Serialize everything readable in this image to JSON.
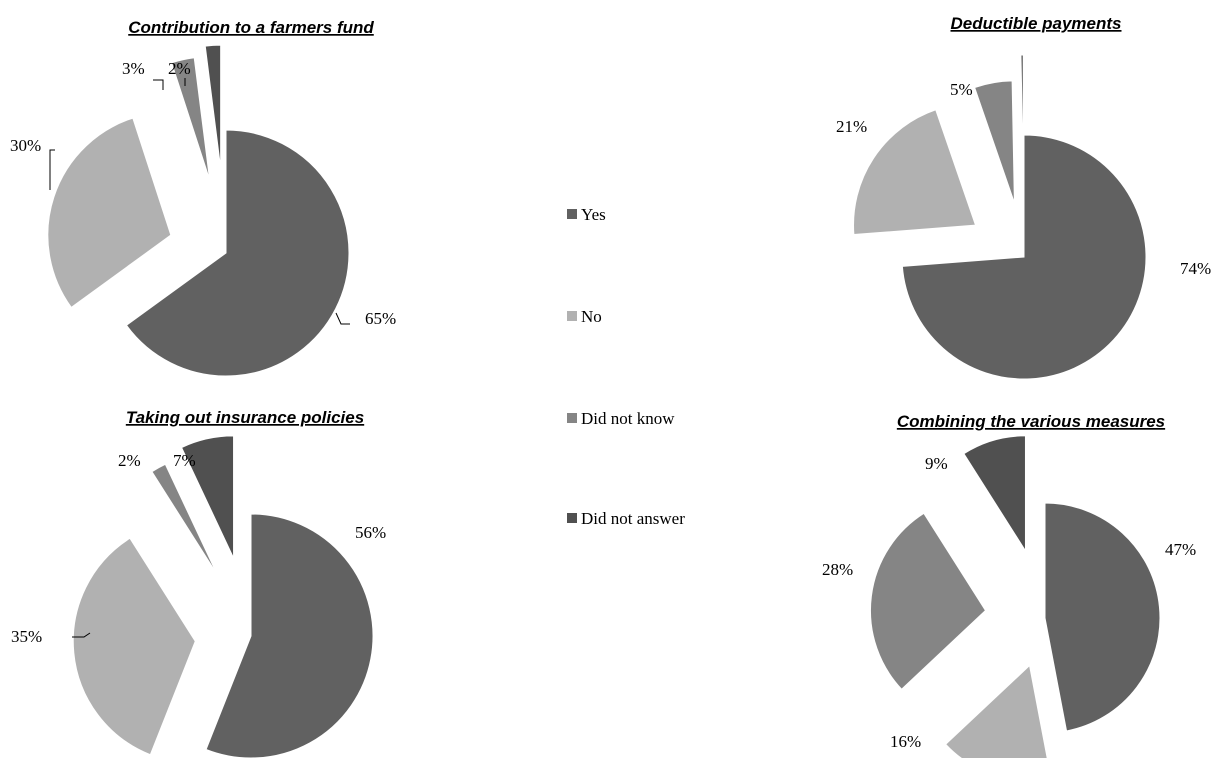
{
  "colors": {
    "Yes": "#616161",
    "No": "#b1b1b1",
    "Did not know": "#858585",
    "Did not answer": "#505050",
    "slice_edge": "#ffffff"
  },
  "legend": [
    "Yes",
    "No",
    "Did not know",
    "Did not answer"
  ],
  "chart_data": [
    {
      "type": "pie",
      "title": "Contribution to a farmers fund",
      "categories": [
        "Yes",
        "No",
        "Did not know",
        "Did not answer"
      ],
      "values": [
        65,
        30,
        3,
        2
      ],
      "labels": [
        "65%",
        "30%",
        "3%",
        "2%"
      ]
    },
    {
      "type": "pie",
      "title": "Deductible payments",
      "categories": [
        "Yes",
        "No",
        "Did not know",
        "Did not answer"
      ],
      "values": [
        74,
        21,
        5,
        0.3
      ],
      "labels": [
        "74%",
        "21%",
        "5%",
        ""
      ]
    },
    {
      "type": "pie",
      "title": "Taking out insurance policies",
      "categories": [
        "Yes",
        "No",
        "Did not know",
        "Did not answer"
      ],
      "values": [
        56,
        35,
        2,
        7
      ],
      "labels": [
        "56%",
        "35%",
        "2%",
        "7%"
      ]
    },
    {
      "type": "pie",
      "title": "Combining the various measures",
      "categories": [
        "Yes",
        "No",
        "Did not know",
        "Did not answer"
      ],
      "values": [
        47,
        16,
        28,
        9
      ],
      "labels": [
        "47%",
        "16%",
        "28%",
        "9%"
      ]
    }
  ]
}
